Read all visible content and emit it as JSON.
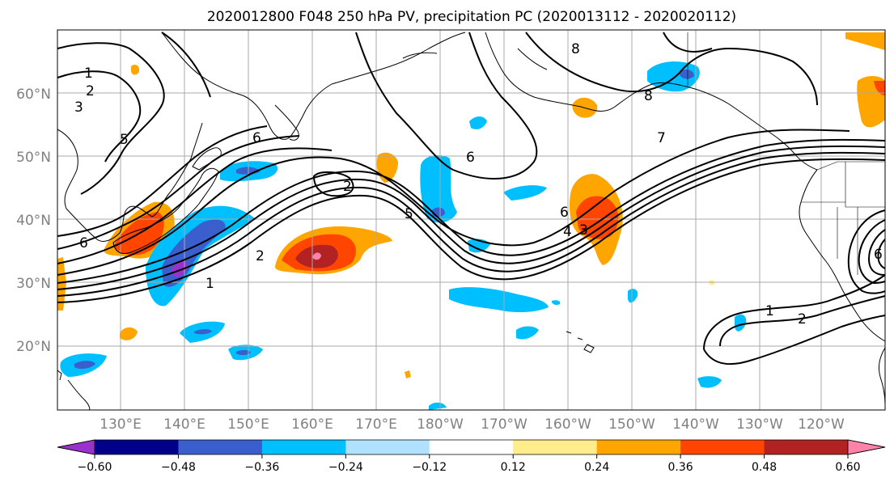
{
  "title": "2020012800 F048 250 hPa PV, precipitation PC (2020013112 - 2020020112)",
  "map": {
    "lat_labels": [
      "60°N",
      "50°N",
      "40°N",
      "30°N",
      "20°N"
    ],
    "lon_labels": [
      "130°E",
      "140°E",
      "150°E",
      "160°E",
      "170°E",
      "180°W",
      "170°W",
      "160°W",
      "150°W",
      "140°W",
      "130°W",
      "120°W"
    ],
    "contour_labels": [
      "1",
      "2",
      "3",
      "6",
      "5",
      "2",
      "6",
      "5",
      "2",
      "1",
      "6",
      "8",
      "8",
      "7",
      "6",
      "4",
      "3",
      "1",
      "2",
      "6"
    ]
  },
  "colorbar": {
    "ticks": [
      "−0.60",
      "−0.48",
      "−0.36",
      "−0.24",
      "−0.12",
      "0.12",
      "0.24",
      "0.36",
      "0.48",
      "0.60"
    ],
    "colors": [
      "#9932cc",
      "#00008b",
      "#3a5fcd",
      "#00bfff",
      "#b0e2ff",
      "#ffffff",
      "#ffec8b",
      "#ffa500",
      "#ff4500",
      "#b22222",
      "#ff82ab"
    ]
  },
  "palette": {
    "neg_light": "#b0e2ff",
    "neg_mid": "#00bfff",
    "neg_strong": "#3a5fcd",
    "neg_xstrong": "#00008b",
    "neg_extreme": "#9932cc",
    "pos_light": "#ffec8b",
    "pos_mid": "#ffa500",
    "pos_strong": "#ff4500",
    "pos_xstrong": "#b22222",
    "pos_extreme": "#ff82ab"
  }
}
